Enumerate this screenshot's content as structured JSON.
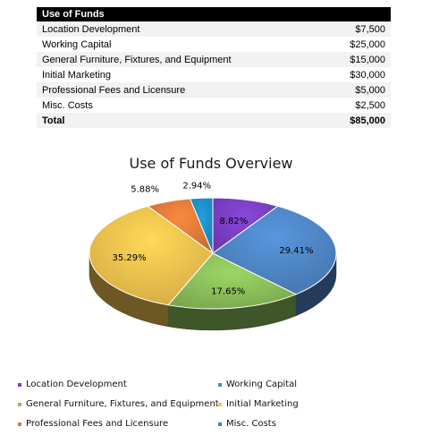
{
  "table": {
    "header": "Use of Funds",
    "rows": [
      {
        "label": "Location Development",
        "amount": "$7,500"
      },
      {
        "label": "Working Capital",
        "amount": "$25,000"
      },
      {
        "label": "General Furniture, Fixtures, and Equipment",
        "amount": "$15,000"
      },
      {
        "label": "Initial Marketing",
        "amount": "$30,000"
      },
      {
        "label": "Professional Fees and Licensure",
        "amount": "$5,000"
      },
      {
        "label": "Misc. Costs",
        "amount": "$2,500"
      }
    ],
    "total": {
      "label": "Total",
      "amount": "$85,000"
    }
  },
  "chart_data": {
    "type": "pie",
    "title": "Use of Funds Overview",
    "categories": [
      "Location Development",
      "Working Capital",
      "General Furniture, Fixtures, and Equipment",
      "Initial Marketing",
      "Professional Fees and Licensure",
      "Misc. Costs"
    ],
    "values": [
      7500,
      25000,
      15000,
      30000,
      5000,
      2500
    ],
    "percent_labels": [
      "8.82%",
      "29.41%",
      "17.65%",
      "35.29%",
      "5.88%",
      "2.94%"
    ],
    "colors": [
      "#7b3fc4",
      "#4f86c6",
      "#8cbf5a",
      "#f2c24e",
      "#e07b39",
      "#1c8fc9"
    ],
    "legend_position": "bottom",
    "style": "3d-pie"
  }
}
